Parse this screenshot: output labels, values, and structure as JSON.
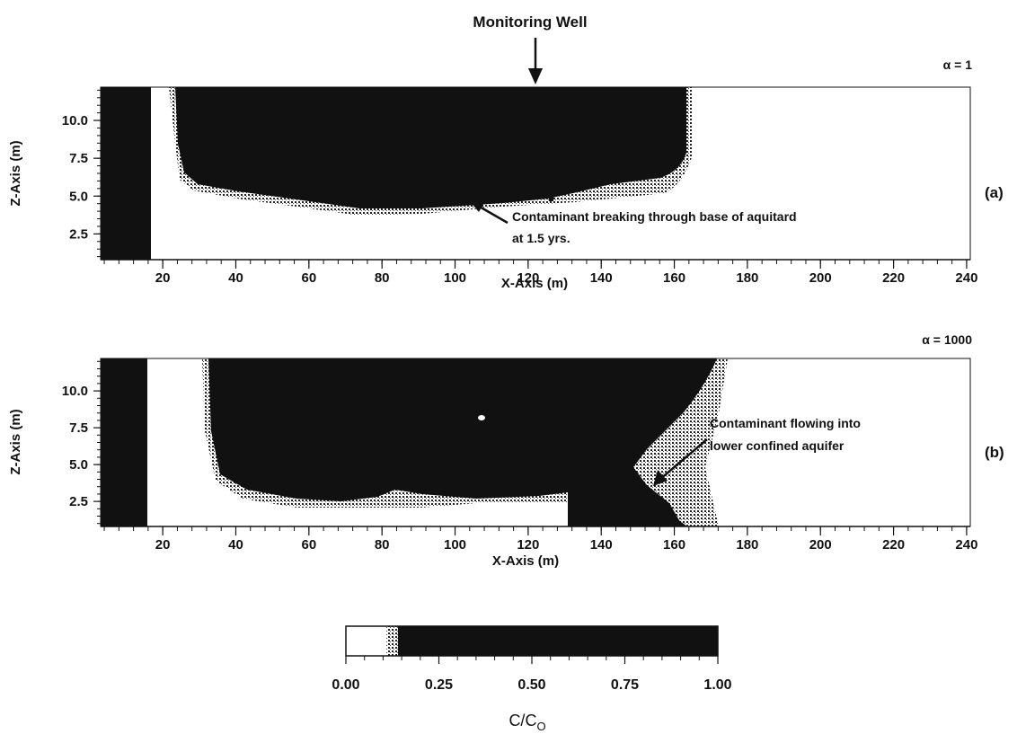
{
  "top_annotation": "Monitoring Well",
  "chart_data": [
    {
      "id": "a",
      "type": "heatmap",
      "panel_label": "(a)",
      "alpha_label": "α = 1",
      "xlabel": "X-Axis (m)",
      "ylabel": "Z-Axis (m)",
      "xlim": [
        3,
        241
      ],
      "ylim": [
        0.8,
        12.2
      ],
      "xticks": [
        20,
        40,
        60,
        80,
        100,
        120,
        140,
        160,
        180,
        200,
        220,
        240
      ],
      "xtick_labels": [
        "20",
        "40",
        "60",
        "80",
        "100",
        "120",
        "140",
        "160",
        "180",
        "200",
        "220",
        "240"
      ],
      "yticks": [
        2.5,
        5.0,
        7.5,
        10.0
      ],
      "ytick_labels": [
        "2.5",
        "5.0",
        "7.5",
        "10.0"
      ],
      "value_label": "C/Co",
      "annotations": [
        {
          "text_lines": [
            "Contaminant breaking through base of aquitard",
            "at 1.5 yrs."
          ],
          "target": [
            104,
            4.3
          ]
        }
      ],
      "plume_regions": [
        {
          "desc": "left boundary source",
          "x": [
            3,
            17
          ],
          "z": [
            0.8,
            12.2
          ],
          "c": 1.0
        },
        {
          "desc": "main plume",
          "x": [
            23,
            163
          ],
          "z_top": 12.2,
          "bottom_profile": [
            [
              23,
              6.3
            ],
            [
              35,
              5.6
            ],
            [
              60,
              5.0
            ],
            [
              80,
              4.6
            ],
            [
              100,
              4.6
            ],
            [
              120,
              4.8
            ],
            [
              135,
              5.1
            ],
            [
              145,
              5.5
            ],
            [
              155,
              6.3
            ],
            [
              160,
              7.0
            ],
            [
              163,
              8.0
            ]
          ],
          "c": 1.0
        },
        {
          "desc": "well spike",
          "x": [
            126,
            128
          ],
          "z": [
            4.6,
            5.7
          ],
          "c": 1.0
        }
      ]
    },
    {
      "id": "b",
      "type": "heatmap",
      "panel_label": "(b)",
      "alpha_label": "α = 1000",
      "xlabel": "X-Axis (m)",
      "ylabel": "Z-Axis (m)",
      "xlim": [
        3,
        241
      ],
      "ylim": [
        0.8,
        12.2
      ],
      "xticks": [
        20,
        40,
        60,
        80,
        100,
        120,
        140,
        160,
        180,
        200,
        220,
        240
      ],
      "xtick_labels": [
        "20",
        "40",
        "60",
        "80",
        "100",
        "120",
        "140",
        "160",
        "180",
        "200",
        "220",
        "240"
      ],
      "yticks": [
        2.5,
        5.0,
        7.5,
        10.0
      ],
      "ytick_labels": [
        "2.5",
        "5.0",
        "7.5",
        "10.0"
      ],
      "value_label": "C/Co",
      "annotations": [
        {
          "text_lines": [
            "Contaminant flowing into",
            "lower confined aquifer"
          ],
          "target": [
            155,
            3.8
          ]
        }
      ],
      "plume_regions": [
        {
          "desc": "left boundary source",
          "x": [
            3,
            17
          ],
          "z": [
            0.8,
            12.2
          ],
          "c": 1.0
        },
        {
          "desc": "main plume",
          "x": [
            33,
            176
          ],
          "z_top": 12.2,
          "bottom_profile": [
            [
              33,
              8.0
            ],
            [
              40,
              5.0
            ],
            [
              55,
              4.0
            ],
            [
              70,
              3.6
            ],
            [
              82,
              4.2
            ],
            [
              90,
              4.6
            ],
            [
              100,
              4.0
            ],
            [
              115,
              3.6
            ],
            [
              130,
              4.0
            ],
            [
              132,
              4.2
            ]
          ],
          "c": 1.0
        },
        {
          "desc": "lower aquifer column",
          "x": [
            132,
            165
          ],
          "z": [
            0.8,
            5.0
          ],
          "c": 1.0
        }
      ]
    }
  ],
  "colorbar": {
    "ticks": [
      0.0,
      0.25,
      0.5,
      0.75,
      1.0
    ],
    "tick_labels": [
      "0.00",
      "0.25",
      "0.50",
      "0.75",
      "1.00"
    ],
    "title_main": "C/C",
    "title_sub": "O"
  }
}
